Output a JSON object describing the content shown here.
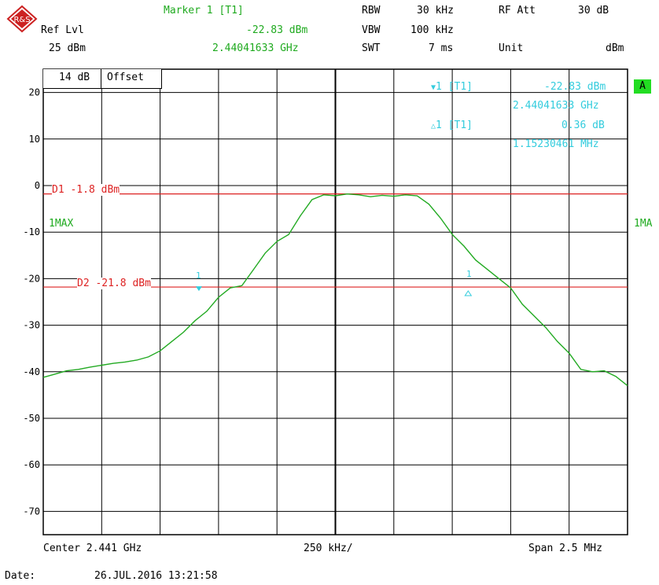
{
  "header": {
    "marker_title": "Marker 1 [T1]",
    "marker_level": "-22.83 dBm",
    "marker_freq": "2.44041633 GHz",
    "ref_lvl_label": "Ref Lvl",
    "ref_lvl_value": "25 dBm",
    "rbw_label": "RBW",
    "rbw_value": "30 kHz",
    "vbw_label": "VBW",
    "vbw_value": "100 kHz",
    "swt_label": "SWT",
    "swt_value": "7 ms",
    "rf_att_label": "RF Att",
    "rf_att_value": "30 dB",
    "unit_label": "Unit",
    "unit_value": "dBm"
  },
  "offset_box": {
    "value": "14 dB",
    "label": "Offset"
  },
  "marker_info": {
    "m1_label": "1 [T1]",
    "m1_level": "-22.83 dBm",
    "m1_freq": "2.44041633 GHz",
    "d1_label": "1 [T1]",
    "d1_level": "0.36 dB",
    "d1_freq": "1.15230461 MHz"
  },
  "badge": {
    "text": "A",
    "color": "#22dd22"
  },
  "trace_labels": {
    "left": "1MAX",
    "right": "1MA"
  },
  "lines": {
    "d1_label": "D1  -1.8  dBm",
    "d2_label": "D2  -21.8  dBm",
    "marker1_text": "1",
    "delta1_text": "1"
  },
  "footer": {
    "center": "Center 2.441 GHz",
    "div": "250 kHz/",
    "span": "Span 2.5 MHz",
    "date_label": "Date:",
    "date_value": "26.JUL.2016  13:21:58"
  },
  "colors": {
    "trace": "#22aa22",
    "display_line": "#dd2222",
    "marker": "#33ccdd",
    "grid": "#000000"
  },
  "chart_data": {
    "type": "line",
    "xlabel": "",
    "ylabel": "",
    "xlim": [
      2439.75,
      2442.25
    ],
    "ylim": [
      -75,
      25
    ],
    "yticks": [
      20,
      10,
      0,
      -10,
      -20,
      -30,
      -40,
      -50,
      -60,
      -70
    ],
    "grid": true,
    "display_lines": [
      {
        "name": "D1",
        "value": -1.8
      },
      {
        "name": "D2",
        "value": -21.8
      }
    ],
    "markers": [
      {
        "name": "M1",
        "x": 2440.416,
        "y": -22.83
      },
      {
        "name": "D1",
        "x": 2441.568,
        "y": -22.47
      }
    ],
    "series": [
      {
        "x": [
          2439.75,
          2439.8,
          2439.85,
          2439.9,
          2439.95,
          2440.0,
          2440.05,
          2440.1,
          2440.15,
          2440.2,
          2440.25,
          2440.3,
          2440.35,
          2440.4,
          2440.45,
          2440.5,
          2440.55,
          2440.6,
          2440.65,
          2440.7,
          2440.75,
          2440.8,
          2440.85,
          2440.9,
          2440.95,
          2441.0,
          2441.05,
          2441.1,
          2441.15,
          2441.2,
          2441.25,
          2441.3,
          2441.35,
          2441.4,
          2441.45,
          2441.5,
          2441.55,
          2441.6,
          2441.65,
          2441.7,
          2441.75,
          2441.8,
          2441.85,
          2441.9,
          2441.95,
          2442.0,
          2442.05,
          2442.1,
          2442.15,
          2442.2,
          2442.25
        ],
        "values": [
          -41.2,
          -40.5,
          -39.8,
          -39.5,
          -39.0,
          -38.6,
          -38.2,
          -37.9,
          -37.5,
          -36.8,
          -35.5,
          -33.5,
          -31.5,
          -29.0,
          -27.0,
          -24.0,
          -22.0,
          -21.5,
          -18.0,
          -14.5,
          -12.0,
          -10.5,
          -6.5,
          -3.0,
          -2.0,
          -2.2,
          -1.8,
          -2.0,
          -2.4,
          -2.1,
          -2.3,
          -2.0,
          -2.2,
          -4.0,
          -7.0,
          -10.5,
          -13.0,
          -16.0,
          -18.0,
          -20.0,
          -22.0,
          -25.5,
          -28.0,
          -30.5,
          -33.5,
          -36.0,
          -39.5,
          -40.0,
          -39.8,
          -41.0,
          -43.0
        ]
      }
    ]
  }
}
